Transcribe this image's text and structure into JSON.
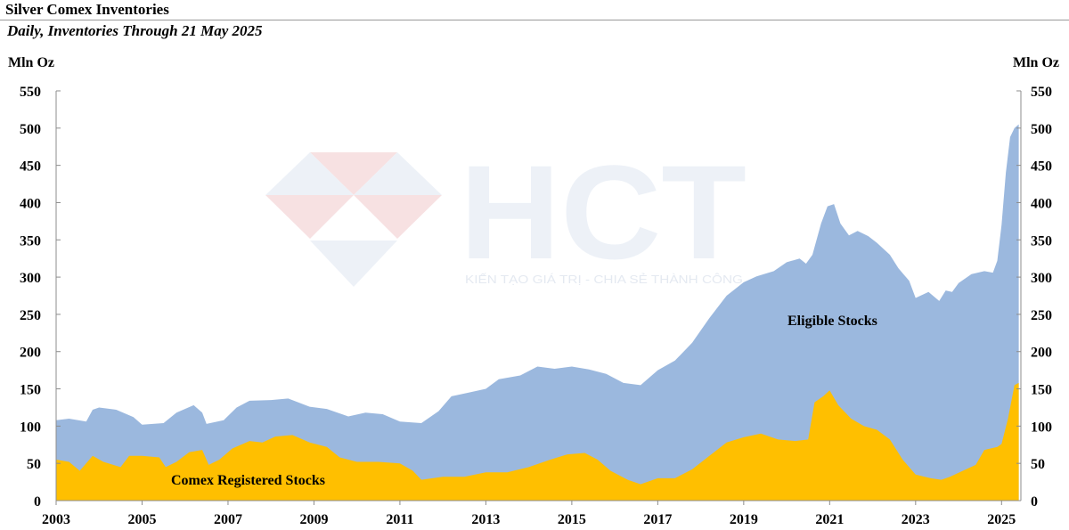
{
  "header": {
    "title": "Silver Comex Inventories",
    "subtitle": "Daily, Inventories Through 21 May 2025"
  },
  "watermark": {
    "brand": "HCT",
    "tagline": "KIẾN TẠO GIÁ TRỊ - CHIA SẺ THÀNH CÔNG"
  },
  "colors": {
    "eligible": "#9bb8de",
    "registered": "#ffbf00",
    "axis": "#8c8c8c"
  },
  "chart_data": {
    "type": "area",
    "title": "Silver Comex Inventories",
    "subtitle": "Daily, Inventories Through 21 May 2025",
    "ylabel_left": "Mln Oz",
    "ylabel_right": "Mln Oz",
    "ylim": [
      0,
      550
    ],
    "yticks": [
      0,
      50,
      100,
      150,
      200,
      250,
      300,
      350,
      400,
      450,
      500,
      550
    ],
    "xlim": [
      2003,
      2025.45
    ],
    "xticks": [
      2003,
      2005,
      2007,
      2009,
      2011,
      2013,
      2015,
      2017,
      2019,
      2021,
      2023,
      2025
    ],
    "grid": false,
    "stacked": false,
    "series": [
      {
        "name": "Eligible Stocks",
        "label": "Eligible Stocks",
        "color": "#9bb8de",
        "points": [
          [
            2003.0,
            108
          ],
          [
            2003.3,
            110
          ],
          [
            2003.7,
            106
          ],
          [
            2003.85,
            122
          ],
          [
            2004.0,
            125
          ],
          [
            2004.4,
            122
          ],
          [
            2004.8,
            112
          ],
          [
            2005.0,
            102
          ],
          [
            2005.5,
            104
          ],
          [
            2005.8,
            118
          ],
          [
            2006.2,
            128
          ],
          [
            2006.4,
            118
          ],
          [
            2006.5,
            103
          ],
          [
            2006.9,
            108
          ],
          [
            2007.2,
            125
          ],
          [
            2007.5,
            134
          ],
          [
            2008.0,
            135
          ],
          [
            2008.4,
            137
          ],
          [
            2008.9,
            126
          ],
          [
            2009.3,
            123
          ],
          [
            2009.8,
            113
          ],
          [
            2010.2,
            118
          ],
          [
            2010.6,
            116
          ],
          [
            2011.0,
            106
          ],
          [
            2011.5,
            104
          ],
          [
            2011.9,
            120
          ],
          [
            2012.2,
            140
          ],
          [
            2012.6,
            145
          ],
          [
            2013.0,
            150
          ],
          [
            2013.3,
            163
          ],
          [
            2013.8,
            168
          ],
          [
            2014.2,
            180
          ],
          [
            2014.6,
            177
          ],
          [
            2015.0,
            180
          ],
          [
            2015.4,
            176
          ],
          [
            2015.8,
            170
          ],
          [
            2016.2,
            158
          ],
          [
            2016.6,
            155
          ],
          [
            2017.0,
            175
          ],
          [
            2017.4,
            188
          ],
          [
            2017.8,
            212
          ],
          [
            2018.2,
            245
          ],
          [
            2018.6,
            275
          ],
          [
            2019.0,
            293
          ],
          [
            2019.3,
            301
          ],
          [
            2019.7,
            308
          ],
          [
            2020.0,
            320
          ],
          [
            2020.3,
            325
          ],
          [
            2020.45,
            318
          ],
          [
            2020.6,
            330
          ],
          [
            2020.8,
            372
          ],
          [
            2020.95,
            395
          ],
          [
            2021.1,
            398
          ],
          [
            2021.25,
            372
          ],
          [
            2021.45,
            356
          ],
          [
            2021.65,
            362
          ],
          [
            2021.9,
            355
          ],
          [
            2022.1,
            346
          ],
          [
            2022.4,
            330
          ],
          [
            2022.6,
            312
          ],
          [
            2022.85,
            295
          ],
          [
            2023.0,
            272
          ],
          [
            2023.3,
            280
          ],
          [
            2023.55,
            268
          ],
          [
            2023.7,
            282
          ],
          [
            2023.85,
            280
          ],
          [
            2024.0,
            292
          ],
          [
            2024.3,
            304
          ],
          [
            2024.6,
            308
          ],
          [
            2024.8,
            306
          ],
          [
            2024.9,
            322
          ],
          [
            2025.0,
            370
          ],
          [
            2025.1,
            440
          ],
          [
            2025.2,
            488
          ],
          [
            2025.3,
            500
          ],
          [
            2025.4,
            505
          ]
        ]
      },
      {
        "name": "Comex Registered Stocks",
        "label": "Comex Registered Stocks",
        "color": "#ffbf00",
        "points": [
          [
            2003.0,
            55
          ],
          [
            2003.3,
            52
          ],
          [
            2003.55,
            40
          ],
          [
            2003.85,
            60
          ],
          [
            2004.1,
            52
          ],
          [
            2004.5,
            45
          ],
          [
            2004.7,
            60
          ],
          [
            2005.0,
            60
          ],
          [
            2005.4,
            58
          ],
          [
            2005.55,
            45
          ],
          [
            2005.8,
            52
          ],
          [
            2006.1,
            65
          ],
          [
            2006.4,
            68
          ],
          [
            2006.55,
            48
          ],
          [
            2006.8,
            55
          ],
          [
            2007.1,
            70
          ],
          [
            2007.5,
            80
          ],
          [
            2007.8,
            78
          ],
          [
            2008.1,
            86
          ],
          [
            2008.5,
            88
          ],
          [
            2008.9,
            78
          ],
          [
            2009.3,
            72
          ],
          [
            2009.6,
            58
          ],
          [
            2010.0,
            52
          ],
          [
            2010.5,
            52
          ],
          [
            2011.0,
            50
          ],
          [
            2011.3,
            40
          ],
          [
            2011.5,
            28
          ],
          [
            2012.0,
            32
          ],
          [
            2012.5,
            32
          ],
          [
            2013.0,
            38
          ],
          [
            2013.5,
            38
          ],
          [
            2014.0,
            45
          ],
          [
            2014.5,
            55
          ],
          [
            2014.9,
            62
          ],
          [
            2015.3,
            64
          ],
          [
            2015.6,
            55
          ],
          [
            2015.9,
            40
          ],
          [
            2016.3,
            28
          ],
          [
            2016.6,
            22
          ],
          [
            2017.0,
            30
          ],
          [
            2017.4,
            30
          ],
          [
            2017.8,
            42
          ],
          [
            2018.2,
            60
          ],
          [
            2018.6,
            78
          ],
          [
            2019.0,
            85
          ],
          [
            2019.4,
            90
          ],
          [
            2019.8,
            82
          ],
          [
            2020.2,
            80
          ],
          [
            2020.5,
            82
          ],
          [
            2020.65,
            132
          ],
          [
            2020.85,
            140
          ],
          [
            2021.0,
            148
          ],
          [
            2021.2,
            128
          ],
          [
            2021.5,
            110
          ],
          [
            2021.8,
            100
          ],
          [
            2022.1,
            95
          ],
          [
            2022.4,
            82
          ],
          [
            2022.7,
            55
          ],
          [
            2023.0,
            35
          ],
          [
            2023.35,
            30
          ],
          [
            2023.6,
            28
          ],
          [
            2023.8,
            32
          ],
          [
            2024.1,
            40
          ],
          [
            2024.4,
            48
          ],
          [
            2024.6,
            68
          ],
          [
            2024.9,
            72
          ],
          [
            2025.0,
            76
          ],
          [
            2025.15,
            110
          ],
          [
            2025.3,
            155
          ],
          [
            2025.4,
            158
          ]
        ]
      }
    ]
  }
}
